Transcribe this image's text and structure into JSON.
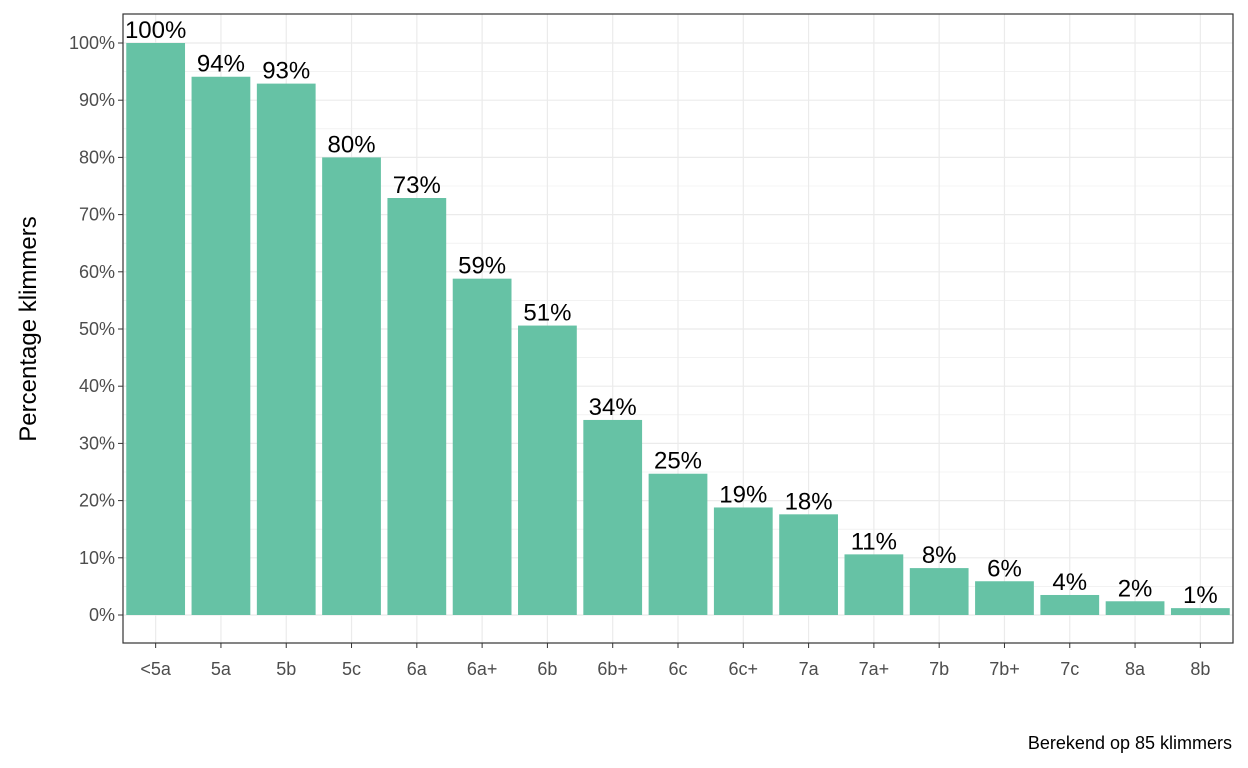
{
  "chart_data": {
    "type": "bar",
    "categories": [
      "<5a",
      "5a",
      "5b",
      "5c",
      "6a",
      "6a+",
      "6b",
      "6b+",
      "6c",
      "6c+",
      "7a",
      "7a+",
      "7b",
      "7b+",
      "7c",
      "8a",
      "8b"
    ],
    "values": [
      100,
      94.1,
      92.9,
      80,
      72.9,
      58.8,
      50.6,
      34.1,
      24.7,
      18.8,
      17.6,
      10.6,
      8.2,
      5.9,
      3.5,
      2.4,
      1.2
    ],
    "data_labels": [
      "100%",
      "94%",
      "93%",
      "80%",
      "73%",
      "59%",
      "51%",
      "34%",
      "25%",
      "19%",
      "18%",
      "11%",
      "8%",
      "6%",
      "4%",
      "2%",
      "1%"
    ],
    "y_ticks": [
      0,
      10,
      20,
      30,
      40,
      50,
      60,
      70,
      80,
      90,
      100
    ],
    "y_tick_labels": [
      "0%",
      "10%",
      "20%",
      "30%",
      "40%",
      "50%",
      "60%",
      "70%",
      "80%",
      "90%",
      "100%"
    ],
    "ylabel": "Percentage klimmers",
    "xlabel": "",
    "caption": "Berekend op 85 klimmers",
    "ylim": [
      -5,
      105
    ],
    "grid": true,
    "legend": "none",
    "colors": {
      "bar": "#66c2a5",
      "grid": "#ebebeb",
      "panel_border": "#333333"
    }
  }
}
